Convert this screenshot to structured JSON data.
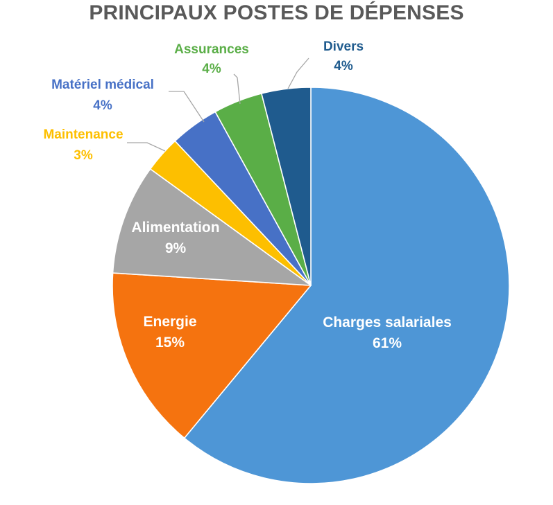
{
  "chart_data": {
    "type": "pie",
    "title": "PRINCIPAUX POSTES DE DÉPENSES",
    "categories": [
      "Charges salariales",
      "Energie",
      "Alimentation",
      "Maintenance",
      "Matériel médical",
      "Assurances",
      "Divers"
    ],
    "values": [
      61,
      15,
      9,
      3,
      4,
      4,
      4
    ],
    "value_labels": [
      "61%",
      "15%",
      "9%",
      "3%",
      "4%",
      "4%",
      "4%"
    ],
    "colors": [
      "#4E96D6",
      "#F5730F",
      "#A6A6A6",
      "#FDBF00",
      "#4771C6",
      "#5AAE47",
      "#1F5B8E"
    ],
    "label_colors": [
      "#ffffff",
      "#ffffff",
      "#ffffff",
      "#FDBF00",
      "#4771C6",
      "#5AAE47",
      "#1F5B8E"
    ],
    "start": "12 o'clock",
    "direction": "clockwise",
    "legend": "none"
  }
}
